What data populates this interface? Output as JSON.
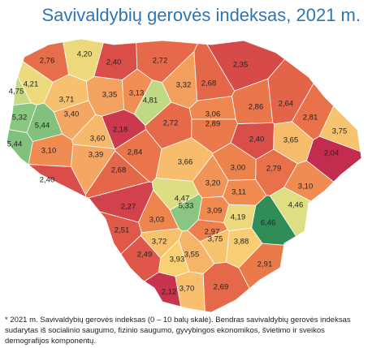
{
  "title": "Savivaldybių gerovės indeksas, 2021 m.",
  "footnote": "* 2021 m. Savivaldybių gerovės indeksas (0 – 10 balų skalė). Bendras savivaldybių gerovės indeksas sudarytas iš socialinio saugumo, fizinio saugumo, gyvybingos ekonomikos, švietimo ir sveikos demografijos komponentų.",
  "regions": [
    {
      "value": 2.76,
      "label": "2,76"
    },
    {
      "value": 4.2,
      "label": "4,20"
    },
    {
      "value": 2.4,
      "label": "2,40"
    },
    {
      "value": 2.72,
      "label": "2,72"
    },
    {
      "value": 2.35,
      "label": "2,35"
    },
    {
      "value": 4.21,
      "label": "4,21"
    },
    {
      "value": 4.75,
      "label": "4,75"
    },
    {
      "value": 3.71,
      "label": "3,71"
    },
    {
      "value": 3.35,
      "label": "3,35"
    },
    {
      "value": 3.13,
      "label": "3,13"
    },
    {
      "value": 4.81,
      "label": "4,81"
    },
    {
      "value": 3.32,
      "label": "3,32"
    },
    {
      "value": 2.68,
      "label": "2,68"
    },
    {
      "value": 2.86,
      "label": "2,86"
    },
    {
      "value": 2.64,
      "label": "2,64"
    },
    {
      "value": 3.4,
      "label": "3,40"
    },
    {
      "value": 5.32,
      "label": "5,32"
    },
    {
      "value": 5.44,
      "label": "5,44"
    },
    {
      "value": 2.18,
      "label": "2,18"
    },
    {
      "value": 2.72,
      "label": "2,72"
    },
    {
      "value": 3.06,
      "label": "3,06"
    },
    {
      "value": 2.89,
      "label": "2,89"
    },
    {
      "value": 2.81,
      "label": "2,81"
    },
    {
      "value": 3.75,
      "label": "3,75"
    },
    {
      "value": 5.44,
      "label": "5,44"
    },
    {
      "value": 3.1,
      "label": "3,10"
    },
    {
      "value": 3.6,
      "label": "3,60"
    },
    {
      "value": 3.39,
      "label": "3,39"
    },
    {
      "value": 2.84,
      "label": "2,84"
    },
    {
      "value": 2.4,
      "label": "2,40"
    },
    {
      "value": 3.65,
      "label": "3,65"
    },
    {
      "value": 2.04,
      "label": "2,04"
    },
    {
      "value": 3.66,
      "label": "3,66"
    },
    {
      "value": 3.0,
      "label": "3,00"
    },
    {
      "value": 2.79,
      "label": "2,79"
    },
    {
      "value": 2.68,
      "label": "2,68"
    },
    {
      "value": 2.4,
      "label": "2,40"
    },
    {
      "value": 3.2,
      "label": "3,20"
    },
    {
      "value": 3.1,
      "label": "3,10"
    },
    {
      "value": 3.11,
      "label": "3,11"
    },
    {
      "value": 4.47,
      "label": "4,47"
    },
    {
      "value": 5.33,
      "label": "5,33"
    },
    {
      "value": 2.27,
      "label": "2,27"
    },
    {
      "value": 3.09,
      "label": "3,09"
    },
    {
      "value": 4.46,
      "label": "4,46"
    },
    {
      "value": 4.19,
      "label": "4,19"
    },
    {
      "value": 6.46,
      "label": "6,46"
    },
    {
      "value": 3.03,
      "label": "3,03"
    },
    {
      "value": 2.51,
      "label": "2,51"
    },
    {
      "value": 2.97,
      "label": "2,97"
    },
    {
      "value": 3.75,
      "label": "3,75"
    },
    {
      "value": 3.72,
      "label": "3,72"
    },
    {
      "value": 3.88,
      "label": "3,88"
    },
    {
      "value": 2.49,
      "label": "2,49"
    },
    {
      "value": 3.55,
      "label": "3,55"
    },
    {
      "value": 3.93,
      "label": "3,93"
    },
    {
      "value": 2.91,
      "label": "2,91"
    },
    {
      "value": 2.12,
      "label": "2,12"
    },
    {
      "value": 3.7,
      "label": "3,70"
    },
    {
      "value": 2.69,
      "label": "2,69"
    }
  ]
}
